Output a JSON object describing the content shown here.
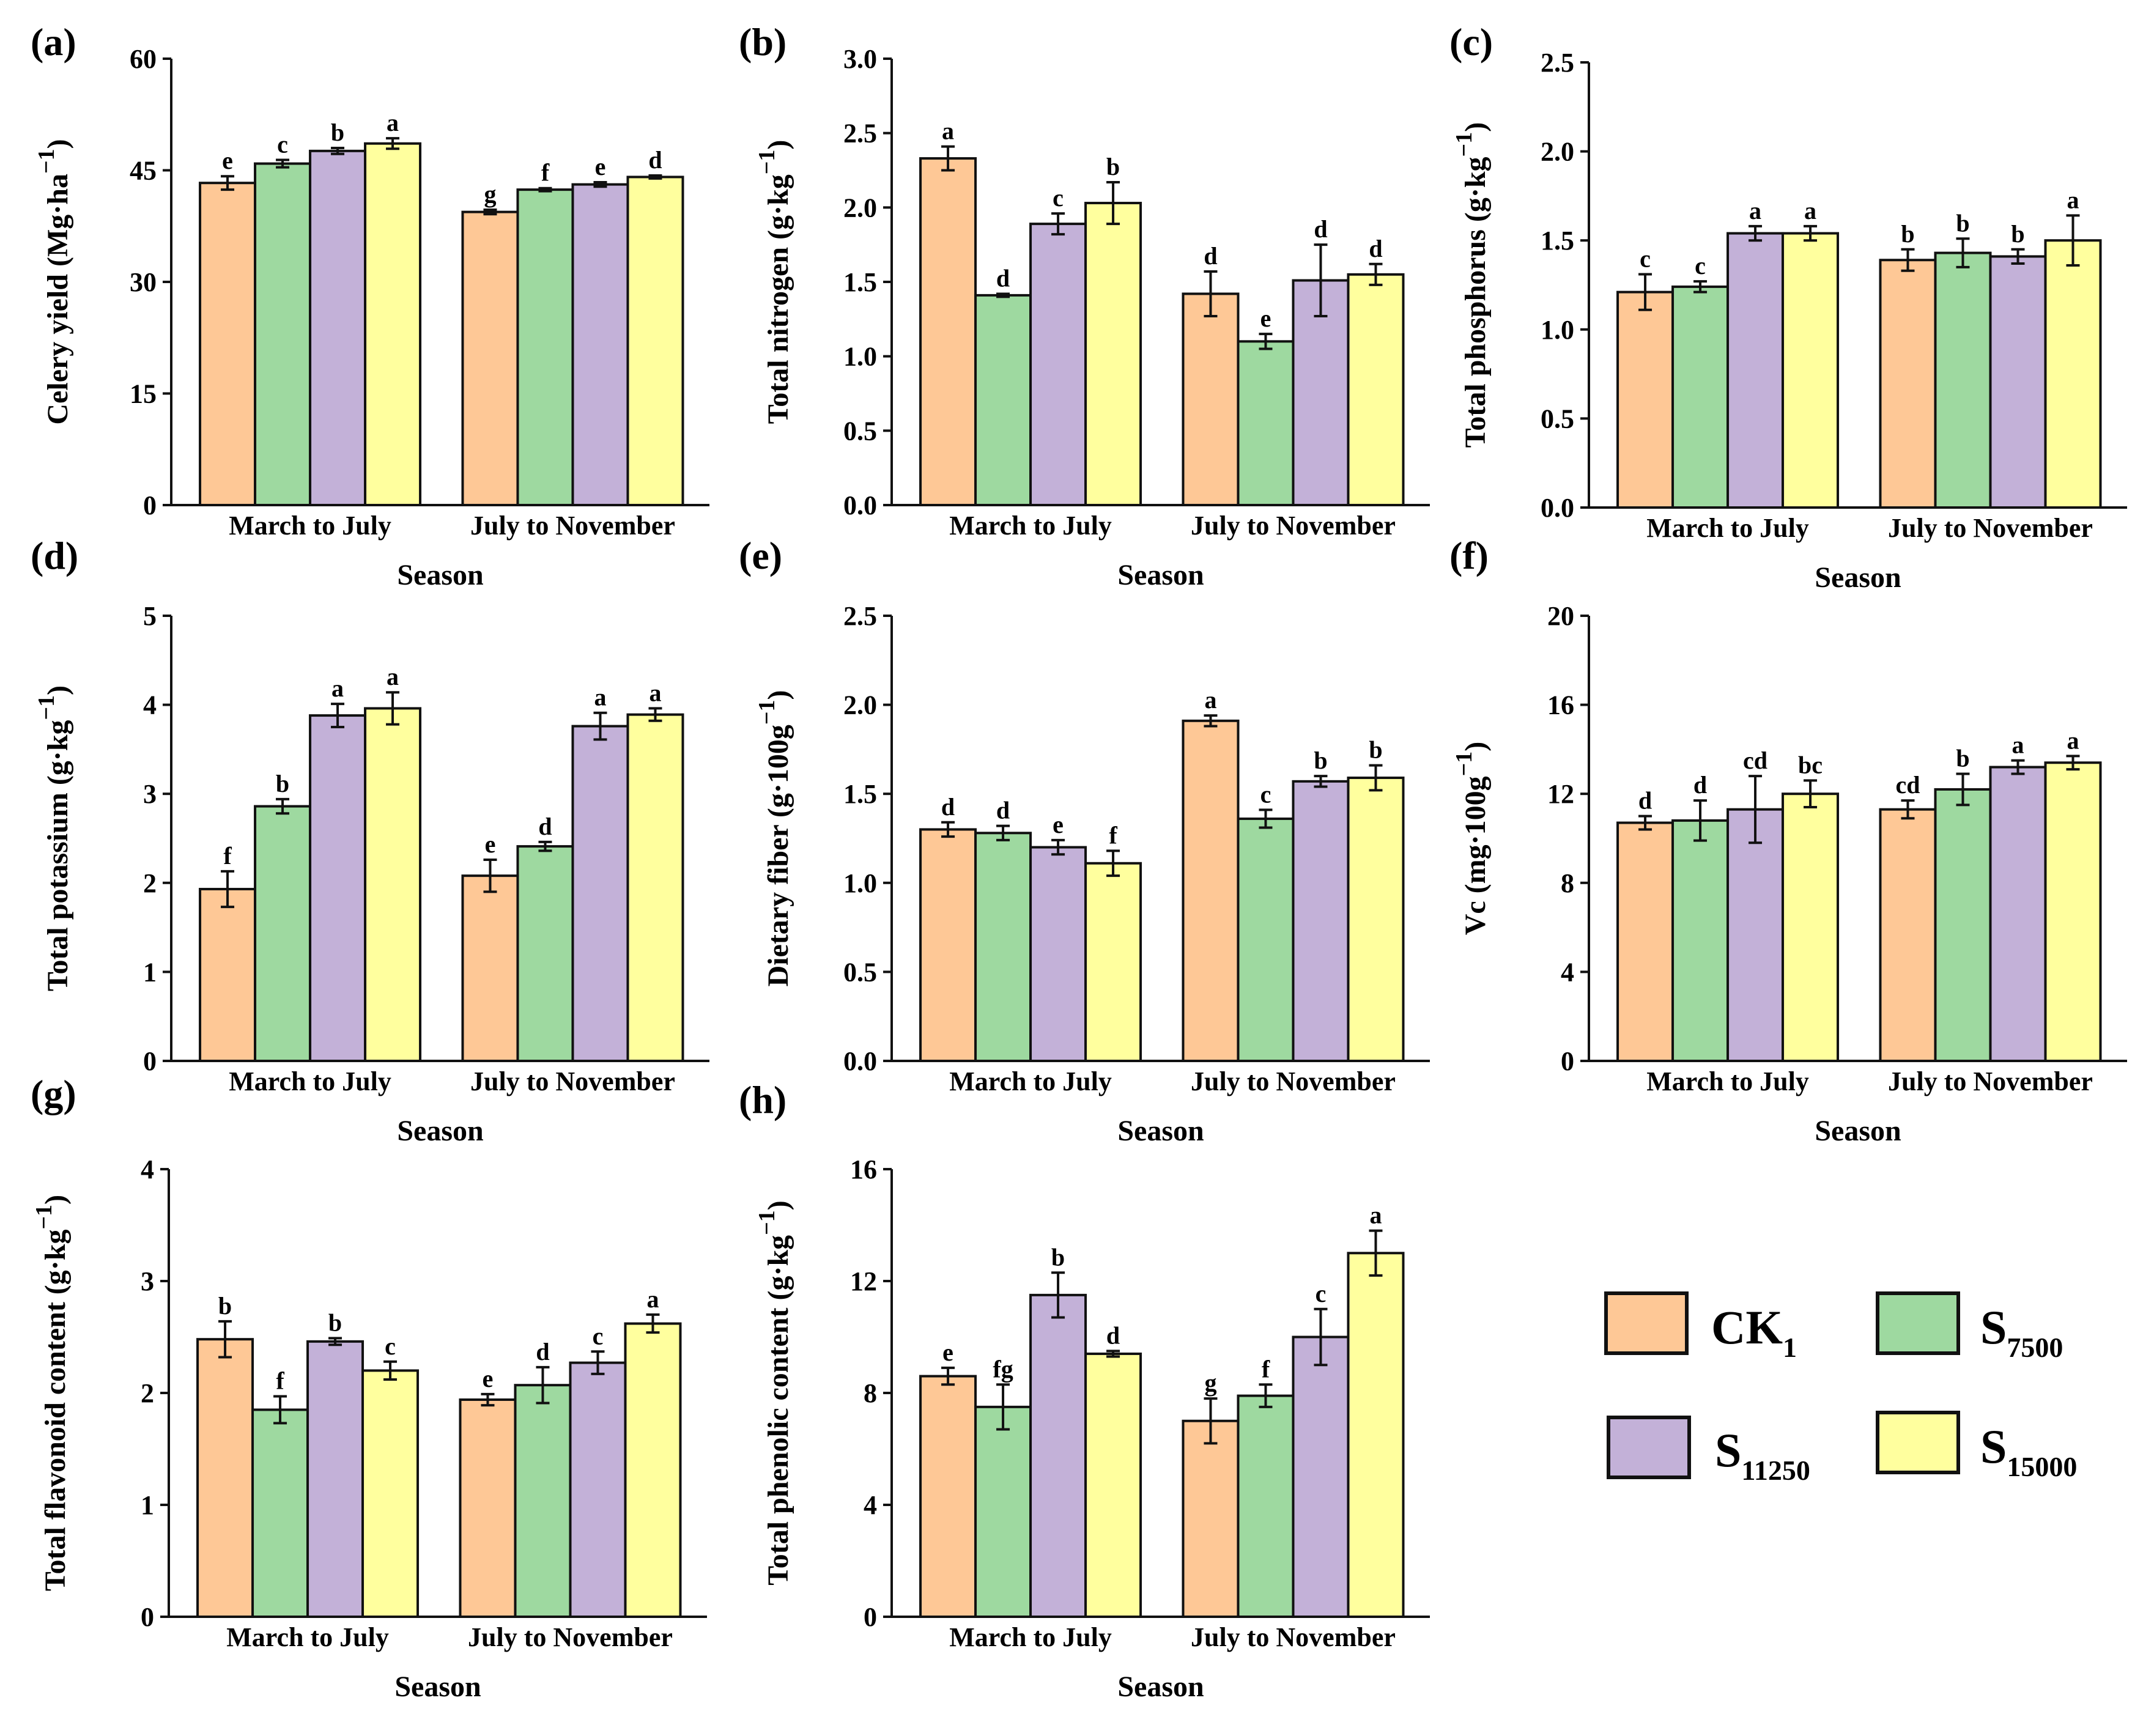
{
  "figure": {
    "legend": [
      {
        "name": "CK",
        "sub": "1",
        "color": "#FEC896"
      },
      {
        "name": "S",
        "sub": "7500",
        "color": "#9ED9A0"
      },
      {
        "name": "S",
        "sub": "11250",
        "color": "#C3B1D8"
      },
      {
        "name": "S",
        "sub": "15000",
        "color": "#FFFF9E"
      }
    ]
  },
  "chart_data": [
    {
      "type": "bar",
      "panel": "(a)",
      "title": "",
      "xlabel": "Season",
      "ylabel": "Celery yield (Mg·ha",
      "ylabel_sup": "−1",
      "ylabel_end": ")",
      "categories": [
        "March to July",
        "July to November"
      ],
      "ylim": [
        0,
        60
      ],
      "yticks": [
        0,
        15,
        30,
        45,
        60
      ],
      "ytick_labels": [
        "0",
        "15",
        "30",
        "45",
        "60"
      ],
      "series": [
        {
          "name": "CK1",
          "values": [
            43.3,
            39.4
          ],
          "errors": [
            0.9,
            0.3
          ],
          "letters": [
            "e",
            "g"
          ]
        },
        {
          "name": "S7500",
          "values": [
            45.9,
            42.4
          ],
          "errors": [
            0.5,
            0.2
          ],
          "letters": [
            "c",
            "f"
          ]
        },
        {
          "name": "S11250",
          "values": [
            47.6,
            43.1
          ],
          "errors": [
            0.4,
            0.3
          ],
          "letters": [
            "b",
            "e"
          ]
        },
        {
          "name": "S15000",
          "values": [
            48.6,
            44.1
          ],
          "errors": [
            0.7,
            0.2
          ],
          "letters": [
            "a",
            "d"
          ]
        }
      ]
    },
    {
      "type": "bar",
      "panel": "(b)",
      "title": "",
      "xlabel": "Season",
      "ylabel": "Total nitrogen (g·kg",
      "ylabel_sup": "−1",
      "ylabel_end": ")",
      "categories": [
        "March to July",
        "July to November"
      ],
      "ylim": [
        0,
        3.0
      ],
      "yticks": [
        0,
        0.5,
        1.0,
        1.5,
        2.0,
        2.5,
        3.0
      ],
      "ytick_labels": [
        "0.0",
        "0.5",
        "1.0",
        "1.5",
        "2.0",
        "2.5",
        "3.0"
      ],
      "series": [
        {
          "name": "CK1",
          "values": [
            2.33,
            1.42
          ],
          "errors": [
            0.08,
            0.15
          ],
          "letters": [
            "a",
            "d"
          ]
        },
        {
          "name": "S7500",
          "values": [
            1.41,
            1.1
          ],
          "errors": [
            0.01,
            0.05
          ],
          "letters": [
            "d",
            "e"
          ]
        },
        {
          "name": "S11250",
          "values": [
            1.89,
            1.51
          ],
          "errors": [
            0.07,
            0.24
          ],
          "letters": [
            "c",
            "d"
          ]
        },
        {
          "name": "S15000",
          "values": [
            2.03,
            1.55
          ],
          "errors": [
            0.14,
            0.07
          ],
          "letters": [
            "b",
            "d"
          ]
        }
      ]
    },
    {
      "type": "bar",
      "panel": "(c)",
      "title": "",
      "xlabel": "Season",
      "ylabel": "Total phosphorus (g·kg",
      "ylabel_sup": "−1",
      "ylabel_end": ")",
      "categories": [
        "March to July",
        "July to November"
      ],
      "ylim": [
        0,
        2.5
      ],
      "yticks": [
        0,
        0.5,
        1.0,
        1.5,
        2.0,
        2.5
      ],
      "ytick_labels": [
        "0.0",
        "0.5",
        "1.0",
        "1.5",
        "2.0",
        "2.5"
      ],
      "series": [
        {
          "name": "CK1",
          "values": [
            1.21,
            1.39
          ],
          "errors": [
            0.1,
            0.06
          ],
          "letters": [
            "c",
            "b"
          ]
        },
        {
          "name": "S7500",
          "values": [
            1.24,
            1.43
          ],
          "errors": [
            0.03,
            0.08
          ],
          "letters": [
            "c",
            "b"
          ]
        },
        {
          "name": "S11250",
          "values": [
            1.54,
            1.41
          ],
          "errors": [
            0.04,
            0.04
          ],
          "letters": [
            "a",
            "b"
          ]
        },
        {
          "name": "S15000",
          "values": [
            1.54,
            1.5
          ],
          "errors": [
            0.04,
            0.14
          ],
          "letters": [
            "a",
            "a"
          ]
        }
      ]
    },
    {
      "type": "bar",
      "panel": "(d)",
      "title": "",
      "xlabel": "Season",
      "ylabel": "Total potassium (g·kg",
      "ylabel_sup": "−1",
      "ylabel_end": ")",
      "categories": [
        "March to July",
        "July to November"
      ],
      "ylim": [
        0,
        5
      ],
      "yticks": [
        0,
        1,
        2,
        3,
        4,
        5
      ],
      "ytick_labels": [
        "0",
        "1",
        "2",
        "3",
        "4",
        "5"
      ],
      "series": [
        {
          "name": "CK1",
          "values": [
            1.93,
            2.08
          ],
          "errors": [
            0.2,
            0.18
          ],
          "letters": [
            "f",
            "e"
          ]
        },
        {
          "name": "S7500",
          "values": [
            2.86,
            2.41
          ],
          "errors": [
            0.08,
            0.05
          ],
          "letters": [
            "b",
            "d"
          ]
        },
        {
          "name": "S11250",
          "values": [
            3.88,
            3.76
          ],
          "errors": [
            0.13,
            0.15
          ],
          "letters": [
            "a",
            "a"
          ]
        },
        {
          "name": "S15000",
          "values": [
            3.96,
            3.89
          ],
          "errors": [
            0.18,
            0.07
          ],
          "letters": [
            "a",
            "a"
          ]
        }
      ]
    },
    {
      "type": "bar",
      "panel": "(e)",
      "title": "",
      "xlabel": "Season",
      "ylabel": "Dietary fiber (g·100g",
      "ylabel_sup": "−1",
      "ylabel_end": ")",
      "categories": [
        "March to July",
        "July to November"
      ],
      "ylim": [
        0,
        2.5
      ],
      "yticks": [
        0,
        0.5,
        1.0,
        1.5,
        2.0,
        2.5
      ],
      "ytick_labels": [
        "0.0",
        "0.5",
        "1.0",
        "1.5",
        "2.0",
        "2.5"
      ],
      "series": [
        {
          "name": "CK1",
          "values": [
            1.3,
            1.91
          ],
          "errors": [
            0.04,
            0.03
          ],
          "letters": [
            "d",
            "a"
          ]
        },
        {
          "name": "S7500",
          "values": [
            1.28,
            1.36
          ],
          "errors": [
            0.04,
            0.05
          ],
          "letters": [
            "d",
            "c"
          ]
        },
        {
          "name": "S11250",
          "values": [
            1.2,
            1.57
          ],
          "errors": [
            0.04,
            0.03
          ],
          "letters": [
            "e",
            "b"
          ]
        },
        {
          "name": "S15000",
          "values": [
            1.11,
            1.59
          ],
          "errors": [
            0.07,
            0.07
          ],
          "letters": [
            "f",
            "b"
          ]
        }
      ]
    },
    {
      "type": "bar",
      "panel": "(f)",
      "title": "",
      "xlabel": "Season",
      "ylabel": "Vc (mg·100g",
      "ylabel_sup": "−1",
      "ylabel_end": ")",
      "categories": [
        "March to July",
        "July to November"
      ],
      "ylim": [
        0,
        20
      ],
      "yticks": [
        0,
        4,
        8,
        12,
        16,
        20
      ],
      "ytick_labels": [
        "0",
        "4",
        "8",
        "12",
        "16",
        "20"
      ],
      "series": [
        {
          "name": "CK1",
          "values": [
            10.7,
            11.3
          ],
          "errors": [
            0.3,
            0.4
          ],
          "letters": [
            "d",
            "cd"
          ]
        },
        {
          "name": "S7500",
          "values": [
            10.8,
            12.2
          ],
          "errors": [
            0.9,
            0.7
          ],
          "letters": [
            "d",
            "b"
          ]
        },
        {
          "name": "S11250",
          "values": [
            11.3,
            13.2
          ],
          "errors": [
            1.5,
            0.3
          ],
          "letters": [
            "cd",
            "a"
          ]
        },
        {
          "name": "S15000",
          "values": [
            12.0,
            13.4
          ],
          "errors": [
            0.6,
            0.3
          ],
          "letters": [
            "bc",
            "a"
          ]
        }
      ]
    },
    {
      "type": "bar",
      "panel": "(g)",
      "title": "",
      "xlabel": "Season",
      "ylabel": "Total flavonoid content (g·kg",
      "ylabel_sup": "−1",
      "ylabel_end": ")",
      "categories": [
        "March to July",
        "July to November"
      ],
      "ylim": [
        0,
        4
      ],
      "yticks": [
        0,
        1,
        2,
        3,
        4
      ],
      "ytick_labels": [
        "0",
        "1",
        "2",
        "3",
        "4"
      ],
      "series": [
        {
          "name": "CK1",
          "values": [
            2.48,
            1.94
          ],
          "errors": [
            0.16,
            0.05
          ],
          "letters": [
            "b",
            "e"
          ]
        },
        {
          "name": "S7500",
          "values": [
            1.85,
            2.07
          ],
          "errors": [
            0.12,
            0.16
          ],
          "letters": [
            "f",
            "d"
          ]
        },
        {
          "name": "S11250",
          "values": [
            2.46,
            2.27
          ],
          "errors": [
            0.03,
            0.1
          ],
          "letters": [
            "b",
            "c"
          ]
        },
        {
          "name": "S15000",
          "values": [
            2.2,
            2.62
          ],
          "errors": [
            0.08,
            0.08
          ],
          "letters": [
            "c",
            "a"
          ]
        }
      ]
    },
    {
      "type": "bar",
      "panel": "(h)",
      "title": "",
      "xlabel": "Season",
      "ylabel": "Total phenolic content (g·kg",
      "ylabel_sup": "−1",
      "ylabel_end": ")",
      "categories": [
        "March to July",
        "July to November"
      ],
      "ylim": [
        0,
        16
      ],
      "yticks": [
        0,
        4,
        8,
        12,
        16
      ],
      "ytick_labels": [
        "0",
        "4",
        "8",
        "12",
        "16"
      ],
      "series": [
        {
          "name": "CK1",
          "values": [
            8.6,
            7.0
          ],
          "errors": [
            0.3,
            0.8
          ],
          "letters": [
            "e",
            "g"
          ]
        },
        {
          "name": "S7500",
          "values": [
            7.5,
            7.9
          ],
          "errors": [
            0.8,
            0.4
          ],
          "letters": [
            "fg",
            "f"
          ]
        },
        {
          "name": "S11250",
          "values": [
            11.5,
            10.0
          ],
          "errors": [
            0.8,
            1.0
          ],
          "letters": [
            "b",
            "c"
          ]
        },
        {
          "name": "S15000",
          "values": [
            9.4,
            13.0
          ],
          "errors": [
            0.1,
            0.8
          ],
          "letters": [
            "d",
            "a"
          ]
        }
      ]
    }
  ]
}
